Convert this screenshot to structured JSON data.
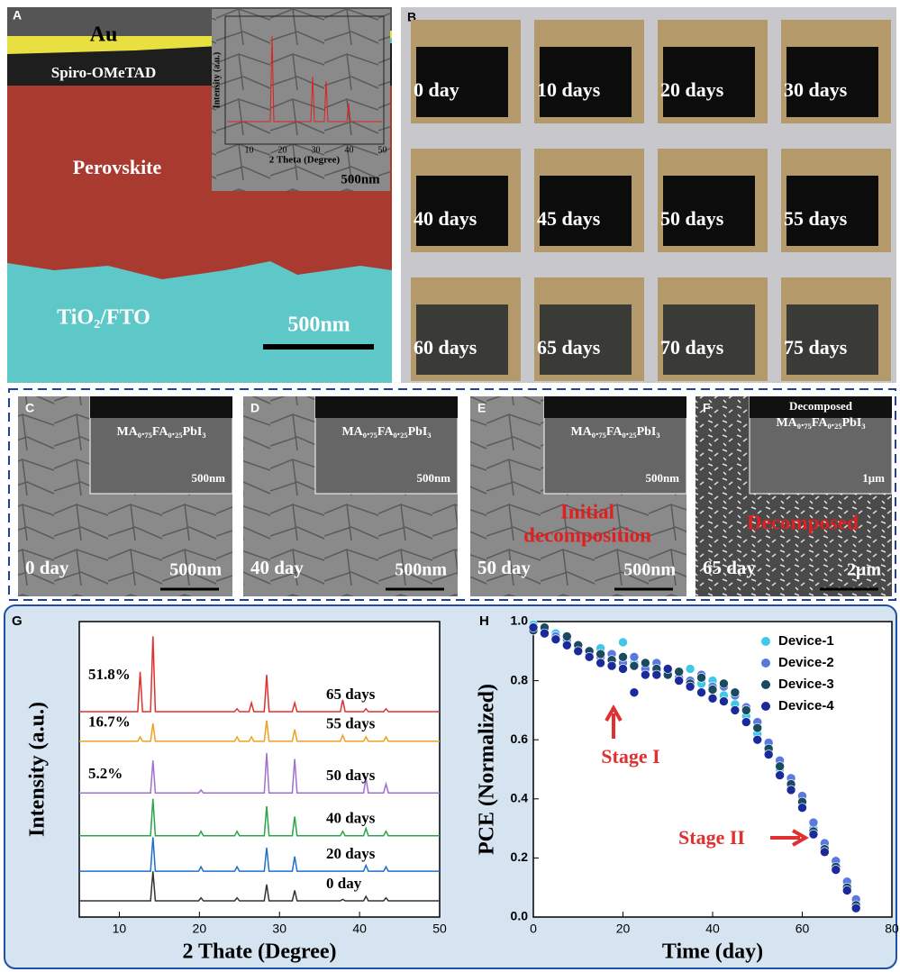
{
  "panel_a": {
    "label": "A",
    "layers": [
      "Au",
      "Spiro-OMeTAD",
      "Perovskite",
      "TiO₂/FTO"
    ],
    "scale": "500nm",
    "inset": {
      "y_label": "Intensity (a.u.)",
      "x_label": "2 Theta (Degree)",
      "xticks": [
        10,
        20,
        30,
        40,
        50
      ],
      "scale": "500nm"
    }
  },
  "panel_b": {
    "label": "B",
    "photos": [
      "0 day",
      "10 days",
      "20 days",
      "30 days",
      "40 days",
      "45 days",
      "50 days",
      "55 days",
      "60 days",
      "65 days",
      "70 days",
      "75 days"
    ]
  },
  "sem_panels": [
    {
      "label": "C",
      "day": "0 day",
      "scale": "500nm",
      "inset_label": "MA₀.₇₅FA₀.₂₅PbI₃",
      "inset_scale": "500nm"
    },
    {
      "label": "D",
      "day": "40 day",
      "scale": "500nm",
      "inset_label": "MA₀.₇₅FA₀.₂₅PbI₃",
      "inset_scale": "500nm"
    },
    {
      "label": "E",
      "day": "50 day",
      "scale": "500nm",
      "inset_label": "MA₀.₇₅FA₀.₂₅PbI₃",
      "inset_scale": "500nm",
      "note": [
        "Initial",
        "decomposition"
      ]
    },
    {
      "label": "F",
      "day": "65 day",
      "scale": "2μm",
      "inset_title": "Decomposed",
      "inset_label": "MA₀.₇₅FA₀.₂₅PbI₃",
      "inset_scale": "1μm",
      "note": [
        "Decomposed"
      ]
    }
  ],
  "chart_data": [
    {
      "type": "line",
      "panel_label": "G",
      "x_label": "2 Thate (Degree)",
      "y_label": "Intensity (a.u.)",
      "xlim": [
        5,
        50
      ],
      "xticks": [
        10,
        20,
        30,
        40,
        50
      ],
      "ylim": [
        0,
        100
      ],
      "x": [
        5,
        12.3,
        12.6,
        12.9,
        13.9,
        14.2,
        14.5,
        19.9,
        20.2,
        20.5,
        24.4,
        24.7,
        25,
        26.2,
        26.5,
        26.8,
        28.1,
        28.4,
        28.7,
        31.6,
        31.9,
        32.2,
        37.6,
        37.9,
        38.2,
        40.5,
        40.8,
        41.1,
        43,
        43.3,
        43.6,
        50
      ],
      "series": [
        {
          "name": "0 day",
          "color": "#333333",
          "values": [
            5.5,
            5.5,
            5.5,
            5.5,
            5.5,
            15.5,
            5.5,
            5.5,
            6.5,
            5.5,
            5.5,
            6.5,
            5.5,
            5.5,
            5.5,
            5.5,
            5.5,
            11,
            5.5,
            5.5,
            9,
            5.5,
            5.5,
            6,
            5.5,
            5.5,
            7,
            5.5,
            5.5,
            6.5,
            5.5,
            5.5
          ]
        },
        {
          "name": "20 days",
          "color": "#1f6fd0",
          "values": [
            15.5,
            15.5,
            15.5,
            15.5,
            15.5,
            27,
            15.5,
            15.5,
            17,
            15.5,
            15.5,
            17,
            15.5,
            15.5,
            15.5,
            15.5,
            15.5,
            23.5,
            15.5,
            15.5,
            20.5,
            15.5,
            15.5,
            15.5,
            15.5,
            15.5,
            17.5,
            15.5,
            15.5,
            17,
            15.5,
            15.5
          ]
        },
        {
          "name": "40 days",
          "color": "#2aa34a",
          "values": [
            27.5,
            27.5,
            27.5,
            27.5,
            27.5,
            40,
            27.5,
            27.5,
            29,
            27.5,
            27.5,
            29,
            27.5,
            27.5,
            27.5,
            27.5,
            27.5,
            37.5,
            27.5,
            27.5,
            34,
            27.5,
            27.5,
            29,
            27.5,
            27.5,
            30,
            27.5,
            27.5,
            29,
            27.5,
            27.5
          ]
        },
        {
          "name": "50 days",
          "color": "#a070d0",
          "values": [
            42,
            42,
            42,
            42,
            42,
            53,
            42,
            42,
            43,
            42,
            42,
            42,
            42,
            42,
            42,
            42,
            42,
            55.5,
            42,
            42,
            53.5,
            42,
            42,
            42,
            42,
            42,
            47,
            42,
            42,
            45,
            42,
            42
          ]
        },
        {
          "name": "55 days",
          "color": "#f0a020",
          "values": [
            59.5,
            59.5,
            61,
            59.5,
            59.5,
            65.5,
            59.5,
            59.5,
            59.5,
            59.5,
            59.5,
            61,
            59.5,
            59.5,
            61,
            59.5,
            59.5,
            66.5,
            59.5,
            59.5,
            63.5,
            59.5,
            59.5,
            61.5,
            59.5,
            59.5,
            61,
            59.5,
            59.5,
            61,
            59.5,
            59.5
          ]
        },
        {
          "name": "65 days",
          "color": "#e03030",
          "values": [
            69.5,
            69.5,
            83,
            69.5,
            69.5,
            95,
            69.5,
            69.5,
            69.5,
            69.5,
            69.5,
            70.5,
            69.5,
            69.5,
            72.5,
            69.5,
            69.5,
            82,
            69.5,
            69.5,
            72.5,
            69.5,
            69.5,
            73.5,
            69.5,
            69.5,
            70.5,
            69.5,
            69.5,
            70.5,
            69.5,
            69.5
          ]
        }
      ],
      "annotations": [
        "51.8%",
        "16.7%",
        "5.2%"
      ]
    },
    {
      "type": "scatter",
      "panel_label": "H",
      "x_label": "Time (day)",
      "y_label": "PCE (Normalized)",
      "xlim": [
        0,
        80
      ],
      "xticks": [
        0,
        20,
        40,
        60,
        80
      ],
      "ylim": [
        0,
        1
      ],
      "yticks": [
        {
          "value": 0,
          "label": "0.0"
        },
        0.2,
        0.4,
        0.6,
        0.8,
        {
          "value": 1,
          "label": "1.0"
        }
      ],
      "legend": "top-right",
      "x": [
        0,
        2.5,
        5,
        7.5,
        10,
        12.5,
        15,
        17.5,
        20,
        22.5,
        25,
        27.5,
        30,
        32.5,
        35,
        37.5,
        40,
        42.5,
        45,
        47.5,
        50,
        52.5,
        55,
        57.5,
        60,
        62.5,
        65,
        67.5,
        70,
        72
      ],
      "series": [
        {
          "name": "Device-1",
          "color": "#40c8e8",
          "values": [
            0.99,
            0.97,
            0.96,
            0.93,
            0.92,
            0.9,
            0.91,
            0.87,
            0.93,
            0.86,
            0.85,
            0.83,
            0.82,
            0.8,
            0.84,
            0.79,
            0.8,
            0.75,
            0.72,
            0.68,
            0.62,
            0.56,
            0.5,
            0.44,
            0.38,
            0.3,
            0.24,
            0.18,
            0.11,
            0.05
          ]
        },
        {
          "name": "Device-2",
          "color": "#5a78e0",
          "values": [
            0.98,
            0.96,
            0.95,
            0.94,
            0.91,
            0.89,
            0.88,
            0.89,
            0.86,
            0.88,
            0.84,
            0.86,
            0.83,
            0.81,
            0.8,
            0.82,
            0.78,
            0.78,
            0.75,
            0.71,
            0.66,
            0.59,
            0.53,
            0.47,
            0.41,
            0.32,
            0.25,
            0.19,
            0.12,
            0.06
          ]
        },
        {
          "name": "Device-3",
          "color": "#1a4a60",
          "values": [
            0.97,
            0.98,
            0.94,
            0.95,
            0.92,
            0.9,
            0.89,
            0.87,
            0.88,
            0.85,
            0.86,
            0.84,
            0.82,
            0.83,
            0.79,
            0.81,
            0.77,
            0.79,
            0.76,
            0.7,
            0.64,
            0.57,
            0.51,
            0.45,
            0.39,
            0.29,
            0.23,
            0.17,
            0.1,
            0.04
          ]
        },
        {
          "name": "Device-4",
          "color": "#1a2a9a",
          "values": [
            0.98,
            0.96,
            0.94,
            0.92,
            0.9,
            0.88,
            0.86,
            0.85,
            0.84,
            0.76,
            0.82,
            0.82,
            0.84,
            0.8,
            0.78,
            0.76,
            0.74,
            0.73,
            0.7,
            0.66,
            0.6,
            0.55,
            0.48,
            0.43,
            0.37,
            0.28,
            0.22,
            0.16,
            0.09,
            0.03
          ]
        }
      ],
      "annotations": [
        "Stage I",
        "Stage II"
      ]
    }
  ]
}
